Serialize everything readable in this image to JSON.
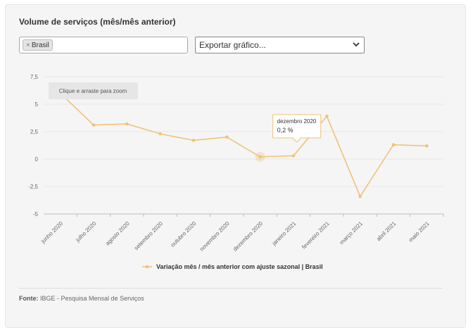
{
  "panel": {
    "title": "Volume de serviços (mês/mês anterior)",
    "filter_tag": "Brasil",
    "filter_remove_icon": "close-icon",
    "export_label": "Exportar gráfico...",
    "export_icon": "chevron-down-icon",
    "zoom_hint": "Clique e arraste para zoom",
    "source_label": "Fonte:",
    "source_text": "IBGE - Pesquisa Mensal de Serviços"
  },
  "tooltip": {
    "title": "dezembro 2020",
    "value": "0,2 %"
  },
  "colors": {
    "series": "#f0c27b",
    "grid": "#e6e6e6",
    "axis": "#999999"
  },
  "chart_data": {
    "type": "line",
    "categories": [
      "junho 2020",
      "julho 2020",
      "agosto 2020",
      "setembro 2020",
      "outubro 2020",
      "novembro 2020",
      "dezembro 2020",
      "janeiro 2021",
      "fevereiro 2021",
      "março 2021",
      "abril 2021",
      "maio 2021"
    ],
    "series": [
      {
        "name": "Variação mês / mês anterior com ajuste sazonal | Brasil",
        "values": [
          6.0,
          3.1,
          3.2,
          2.3,
          1.7,
          2.0,
          0.2,
          0.3,
          3.9,
          -3.4,
          1.3,
          1.2
        ]
      }
    ],
    "ylim": [
      -5,
      7.5
    ],
    "yticks": [
      "7,5",
      "5",
      "2,5",
      "0",
      "-2,5",
      "-5"
    ],
    "ytick_values": [
      7.5,
      5,
      2.5,
      0,
      -2.5,
      -5
    ],
    "highlight_index": 6,
    "grid": true,
    "legend": "bottom"
  }
}
